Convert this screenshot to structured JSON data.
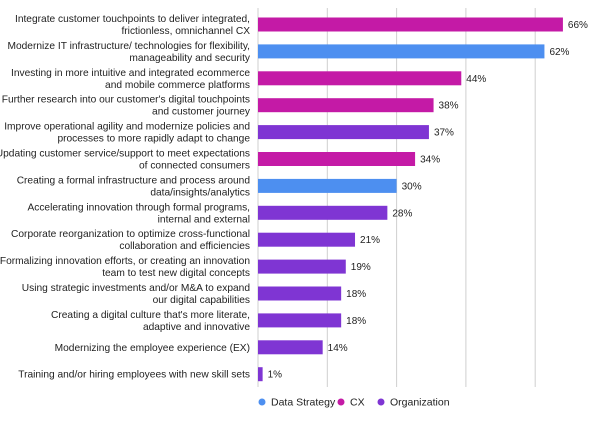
{
  "chart_data": {
    "type": "bar",
    "orientation": "horizontal",
    "title": "",
    "xlabel": "",
    "ylabel": "",
    "xlim": [
      0,
      70
    ],
    "grid": "vertical",
    "legend_position": "bottom",
    "value_suffix": "%",
    "categories": [
      [
        "Integrate customer touchpoints to deliver integrated,",
        "frictionless, omnichannel CX"
      ],
      [
        "Modernize IT infrastructure/ technologies for flexibility,",
        "manageability and security"
      ],
      [
        "Investing in more intuitive and integrated ecommerce",
        "and mobile commerce platforms"
      ],
      [
        "Further research into our customer's digital touchpoints",
        "and customer journey"
      ],
      [
        "Improve operational agility and modernize policies and",
        "processes to more rapidly adapt to change"
      ],
      [
        "Updating customer service/support to meet expectations",
        "of connected consumers"
      ],
      [
        "Creating a formal infrastructure and process around",
        "data/insights/analytics"
      ],
      [
        "Accelerating innovation through formal programs,",
        "internal and external"
      ],
      [
        "Corporate reorganization to optimize cross-functional",
        "collaboration and efficiencies"
      ],
      [
        "Formalizing innovation efforts, or creating an innovation",
        "team to test new digital concepts"
      ],
      [
        "Using strategic investments and/or M&A to expand",
        "our digital capabilities"
      ],
      [
        "Creating a digital culture that's more literate,",
        "adaptive and innovative"
      ],
      [
        "Modernizing the employee experience (EX)"
      ],
      [
        "Training and/or hiring employees with new skill sets"
      ]
    ],
    "values": [
      66,
      62,
      44,
      38,
      37,
      34,
      30,
      28,
      21,
      19,
      18,
      18,
      14,
      1
    ],
    "groups": [
      "CX",
      "Data Strategy",
      "CX",
      "CX",
      "Organization",
      "CX",
      "Data Strategy",
      "Organization",
      "Organization",
      "Organization",
      "Organization",
      "Organization",
      "Organization",
      "Organization"
    ],
    "legend": [
      {
        "name": "Data Strategy",
        "color": "#4d8ff0"
      },
      {
        "name": "CX",
        "color": "#c41aa6"
      },
      {
        "name": "Organization",
        "color": "#7f35d3"
      }
    ]
  }
}
